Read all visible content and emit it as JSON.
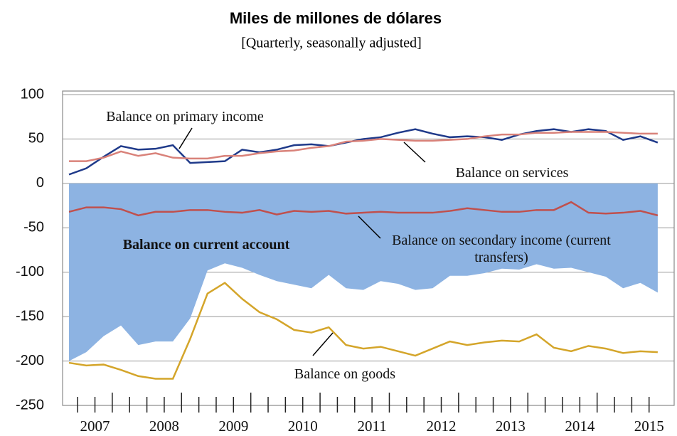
{
  "chart_data": {
    "type": "line",
    "title": "Miles de millones de dólares",
    "subtitle": "[Quarterly, seasonally adjusted]",
    "categories": [
      null,
      "2007",
      null,
      null,
      null,
      "2008",
      null,
      null,
      null,
      "2009",
      null,
      null,
      null,
      "2010",
      null,
      null,
      null,
      "2011",
      null,
      null,
      null,
      "2012",
      null,
      null,
      null,
      "2013",
      null,
      null,
      null,
      "2014",
      null,
      null,
      null,
      "2015",
      null
    ],
    "ylim": [
      -250,
      100
    ],
    "yticks": [
      -250,
      -200,
      -150,
      -100,
      -50,
      0,
      50,
      100
    ],
    "grid": true,
    "series": [
      {
        "name": "Balance on current account",
        "type": "area",
        "color": "#8db3e2",
        "values": [
          -200,
          -190,
          -172,
          -160,
          -182,
          -178,
          -178,
          -152,
          -98,
          -90,
          -95,
          -103,
          -110,
          -114,
          -118,
          -103,
          -118,
          -120,
          -110,
          -113,
          -120,
          -118,
          -104,
          -104,
          -101,
          -96,
          -97,
          -91,
          -96,
          -95,
          -100,
          -105,
          -118,
          -112,
          -123
        ]
      },
      {
        "name": "Balance on primary income",
        "type": "line",
        "color": "#1f3a8a",
        "values": [
          10,
          17,
          30,
          42,
          38,
          39,
          43,
          23,
          24,
          25,
          38,
          35,
          38,
          43,
          44,
          42,
          46,
          50,
          52,
          57,
          61,
          56,
          52,
          53,
          52,
          49,
          55,
          59,
          61,
          58,
          61,
          59,
          49,
          53,
          46
        ]
      },
      {
        "name": "Balance on services",
        "type": "line",
        "color": "#d9827a",
        "values": [
          25,
          25,
          29,
          36,
          31,
          34,
          29,
          28,
          28,
          31,
          31,
          34,
          36,
          37,
          40,
          42,
          47,
          48,
          50,
          49,
          48,
          48,
          49,
          50,
          53,
          55,
          55,
          57,
          57,
          58,
          58,
          58,
          57,
          56,
          56
        ]
      },
      {
        "name": "Balance on secondary income (current transfers)",
        "type": "line",
        "color": "#c0504d",
        "values": [
          -32,
          -27,
          -27,
          -29,
          -36,
          -32,
          -32,
          -30,
          -30,
          -32,
          -33,
          -30,
          -35,
          -31,
          -32,
          -31,
          -34,
          -33,
          -32,
          -33,
          -33,
          -33,
          -31,
          -28,
          -30,
          -32,
          -32,
          -30,
          -30,
          -21,
          -33,
          -34,
          -33,
          -31,
          -36
        ]
      },
      {
        "name": "Balance on goods",
        "type": "line",
        "color": "#d4a52a",
        "values": [
          -202,
          -205,
          -204,
          -210,
          -217,
          -220,
          -220,
          -175,
          -124,
          -112,
          -130,
          -145,
          -153,
          -165,
          -168,
          -162,
          -182,
          -186,
          -184,
          -189,
          -194,
          -186,
          -178,
          -182,
          -179,
          -177,
          -178,
          -170,
          -185,
          -189,
          -183,
          -186,
          -191,
          -189,
          -190
        ]
      }
    ]
  }
}
